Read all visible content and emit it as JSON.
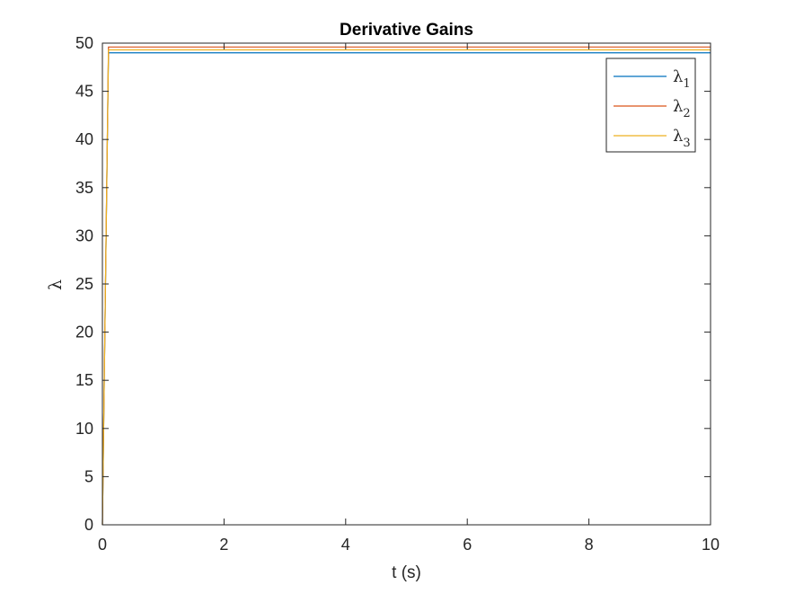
{
  "chart_data": {
    "type": "line",
    "title": "Derivative Gains",
    "xlabel": "t (s)",
    "ylabel": "λ",
    "xlim": [
      0,
      10
    ],
    "ylim": [
      0,
      50
    ],
    "xticks": [
      0,
      2,
      4,
      6,
      8,
      10
    ],
    "yticks": [
      0,
      5,
      10,
      15,
      20,
      25,
      30,
      35,
      40,
      45,
      50
    ],
    "grid": false,
    "legend_position": "top-right",
    "series": [
      {
        "name": "λ",
        "subscript": "1",
        "color": "#0072BD",
        "x": [
          0,
          0.1,
          10
        ],
        "y": [
          0,
          49.0,
          49.0
        ]
      },
      {
        "name": "λ",
        "subscript": "2",
        "color": "#D95319",
        "x": [
          0,
          0.1,
          10
        ],
        "y": [
          0,
          49.6,
          49.6
        ]
      },
      {
        "name": "λ",
        "subscript": "3",
        "color": "#EDB120",
        "x": [
          0,
          0.1,
          10
        ],
        "y": [
          0,
          49.3,
          49.3
        ]
      }
    ]
  }
}
